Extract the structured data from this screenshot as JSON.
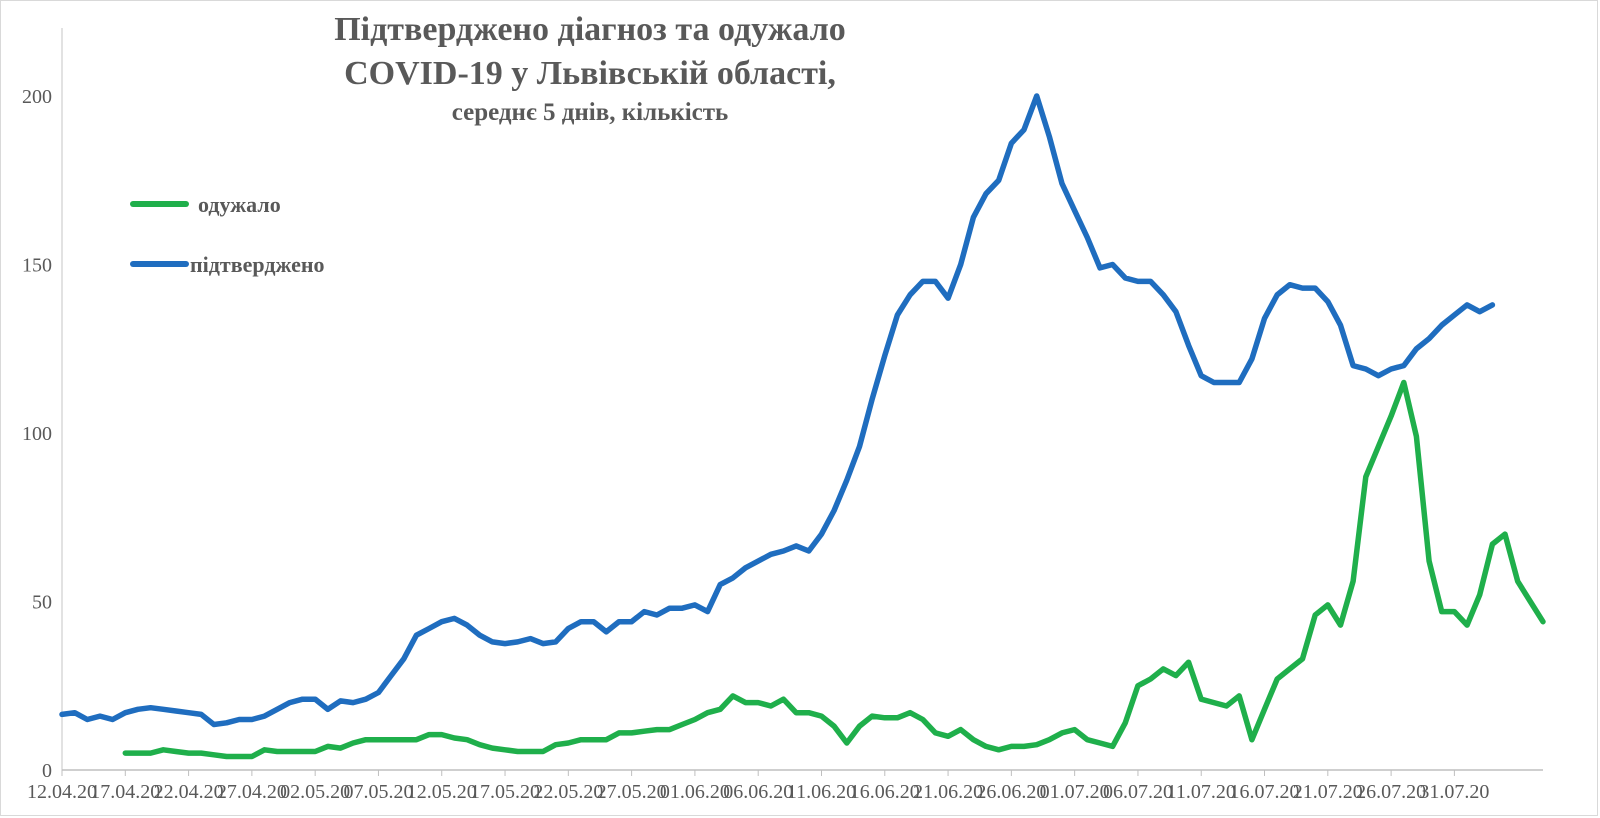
{
  "chart_data": {
    "type": "line",
    "title": "Підтверджено діагноз та одужало",
    "title_line2": "COVID-19 у Львівській області,",
    "subtitle": "середнє 5 днів, кількість",
    "xlabel": "",
    "ylabel": "",
    "ylim": [
      0,
      200
    ],
    "yticks": [
      0,
      50,
      100,
      150,
      200
    ],
    "grid": false,
    "legend_position": "left",
    "x_tick_labels": [
      "12.04.20",
      "17.04.20",
      "22.04.20",
      "27.04.20",
      "02.05.20",
      "07.05.20",
      "12.05.20",
      "17.05.20",
      "22.05.20",
      "27.05.20",
      "01.06.20",
      "06.06.20",
      "11.06.20",
      "16.06.20",
      "21.06.20",
      "26.06.20",
      "01.07.20",
      "06.07.20",
      "11.07.20",
      "16.07.20",
      "21.07.20",
      "26.07.20",
      "31.07.20"
    ],
    "x_start": "12.04.20",
    "x_end": "03.08.20",
    "series": [
      {
        "name": "одужало",
        "color": "#1FAF4B",
        "values": [
          null,
          null,
          null,
          null,
          null,
          5,
          5,
          5,
          6,
          5.5,
          5,
          5,
          4.5,
          4,
          4,
          4,
          6,
          5.5,
          5.5,
          5.5,
          5.5,
          7,
          6.5,
          8,
          9,
          9,
          9,
          9,
          9,
          10.5,
          10.5,
          9.5,
          9,
          7.5,
          6.5,
          6,
          5.5,
          5.5,
          5.5,
          7.5,
          8,
          9,
          9,
          9,
          11,
          11,
          11.5,
          12,
          12,
          13.5,
          15,
          17,
          18,
          22,
          20,
          20,
          19,
          21,
          17,
          17,
          16,
          13,
          8,
          13,
          16,
          15.5,
          15.5,
          17,
          15,
          11,
          10,
          12,
          9,
          7,
          6,
          7,
          7,
          7.5,
          9,
          11,
          12,
          9,
          8,
          7,
          14,
          25,
          27,
          30,
          28,
          32,
          21,
          20,
          19,
          22,
          9,
          18,
          27,
          30,
          33,
          46,
          49,
          43,
          56,
          87,
          96,
          105,
          115,
          99,
          62,
          47,
          47,
          43,
          52,
          67,
          70,
          56,
          50,
          44
        ]
      },
      {
        "name": "підтверджено",
        "color": "#1F6DBF",
        "values": [
          16.5,
          17,
          15,
          16,
          15,
          17,
          18,
          18.5,
          18,
          17.5,
          17,
          16.5,
          13.5,
          14,
          15,
          15,
          16,
          18,
          20,
          21,
          21,
          18,
          20.5,
          20,
          21,
          23,
          28,
          33,
          40,
          42,
          44,
          45,
          43,
          40,
          38,
          37.5,
          38,
          39,
          37.5,
          38,
          42,
          44,
          44,
          41,
          44,
          44,
          47,
          46,
          48,
          48,
          49,
          47,
          55,
          57,
          60,
          62,
          64,
          65,
          66.5,
          65,
          70,
          77,
          86,
          96,
          110,
          123,
          135,
          141,
          145,
          145,
          140,
          150,
          164,
          171,
          175,
          186,
          190,
          200,
          188,
          174,
          166,
          158,
          149,
          150,
          146,
          145,
          145,
          141,
          136,
          126,
          117,
          115,
          115,
          115,
          122,
          134,
          141,
          144,
          143,
          143,
          139,
          132,
          120,
          119,
          117,
          119,
          120,
          125,
          128,
          132,
          135,
          138,
          136,
          138
        ]
      }
    ]
  }
}
